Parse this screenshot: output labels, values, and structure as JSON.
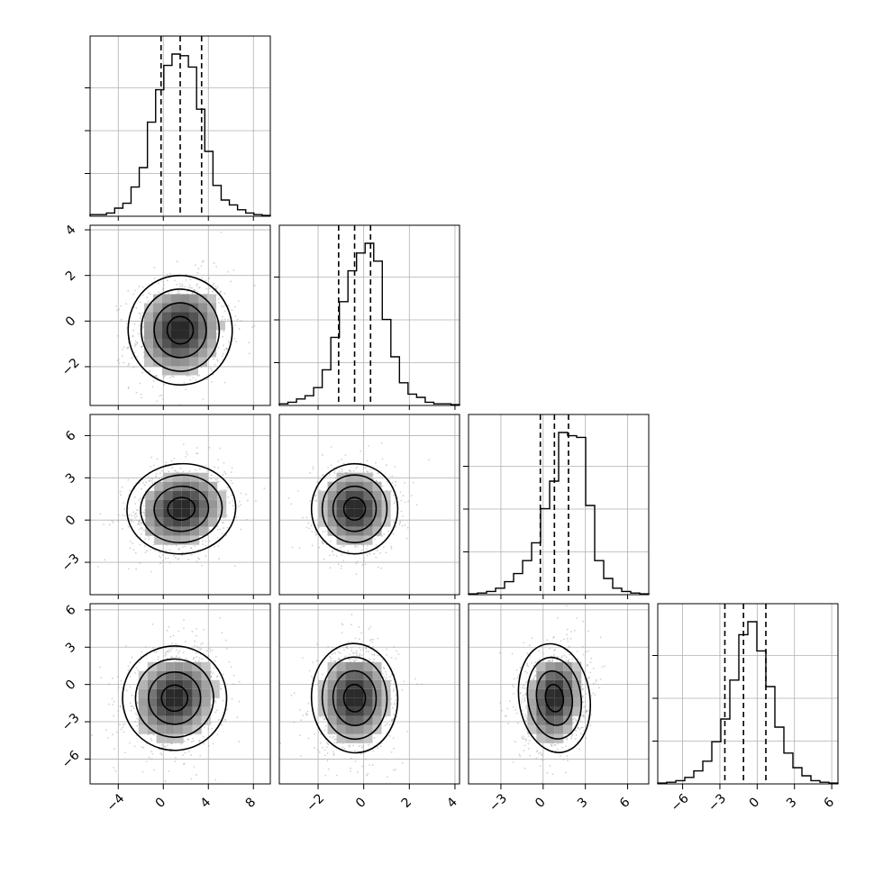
{
  "chart_data": {
    "type": "corner",
    "n_params": 4,
    "grid": true,
    "colors": {
      "line": "#000000",
      "grid": "#b0b0b0",
      "points": "#9a9a9a"
    },
    "params": [
      {
        "range": [
          -6.5,
          9.5
        ],
        "quantiles": [
          -0.2,
          1.5,
          3.4
        ],
        "ticks": [
          -4,
          0,
          4,
          8
        ],
        "tick_labels": [
          "−4",
          "0",
          "4",
          "8"
        ],
        "hist": [
          0.01,
          0.01,
          0.02,
          0.05,
          0.08,
          0.18,
          0.3,
          0.58,
          0.78,
          0.93,
          1.0,
          0.99,
          0.92,
          0.66,
          0.4,
          0.19,
          0.1,
          0.07,
          0.04,
          0.02,
          0.01,
          0.005
        ]
      },
      {
        "range": [
          -3.7,
          4.2
        ],
        "quantiles": [
          -1.1,
          -0.4,
          0.3
        ],
        "ticks": [
          -2,
          0,
          2,
          4
        ],
        "tick_labels": [
          "−2",
          "0",
          "2",
          "4"
        ],
        "hist": [
          0.01,
          0.02,
          0.04,
          0.06,
          0.11,
          0.22,
          0.42,
          0.64,
          0.83,
          0.94,
          1.0,
          0.89,
          0.53,
          0.3,
          0.14,
          0.07,
          0.05,
          0.02,
          0.01,
          0.01,
          0.005
        ]
      },
      {
        "range": [
          -5.3,
          7.5
        ],
        "quantiles": [
          -0.2,
          0.8,
          1.8
        ],
        "ticks": [
          -3,
          0,
          3,
          6
        ],
        "tick_labels": [
          "−3",
          "0",
          "3",
          "6"
        ],
        "hist": [
          0.005,
          0.01,
          0.02,
          0.04,
          0.08,
          0.13,
          0.21,
          0.32,
          0.53,
          0.7,
          1.0,
          0.98,
          0.97,
          0.55,
          0.21,
          0.1,
          0.04,
          0.02,
          0.01,
          0.005
        ]
      },
      {
        "range": [
          -8.0,
          6.5
        ],
        "quantiles": [
          -2.6,
          -1.1,
          0.7
        ],
        "ticks": [
          -6,
          -3,
          0,
          3,
          6
        ],
        "tick_labels": [
          "−6",
          "−3",
          "0",
          "3",
          "6"
        ],
        "hist": [
          0.005,
          0.01,
          0.02,
          0.04,
          0.08,
          0.14,
          0.26,
          0.4,
          0.64,
          0.92,
          1.0,
          0.82,
          0.6,
          0.35,
          0.19,
          0.1,
          0.05,
          0.02,
          0.01,
          0.005
        ]
      }
    ],
    "pairs": [
      {
        "row": 1,
        "col": 0,
        "center": [
          1.5,
          -0.4
        ],
        "spread": [
          2.2,
          1.2
        ],
        "corr": 0.1
      },
      {
        "row": 2,
        "col": 0,
        "center": [
          1.6,
          0.8
        ],
        "spread": [
          2.3,
          1.6
        ],
        "corr": 0.15
      },
      {
        "row": 2,
        "col": 1,
        "center": [
          -0.4,
          0.8
        ],
        "spread": [
          0.9,
          1.6
        ],
        "corr": 0.0
      },
      {
        "row": 3,
        "col": 0,
        "center": [
          1.0,
          -1.1
        ],
        "spread": [
          2.2,
          2.1
        ],
        "corr": 0.15
      },
      {
        "row": 3,
        "col": 1,
        "center": [
          -0.4,
          -1.1
        ],
        "spread": [
          0.9,
          2.2
        ],
        "corr": 0.05
      },
      {
        "row": 3,
        "col": 2,
        "center": [
          0.8,
          -1.1
        ],
        "spread": [
          1.2,
          2.2
        ],
        "corr": 0.15
      }
    ]
  }
}
